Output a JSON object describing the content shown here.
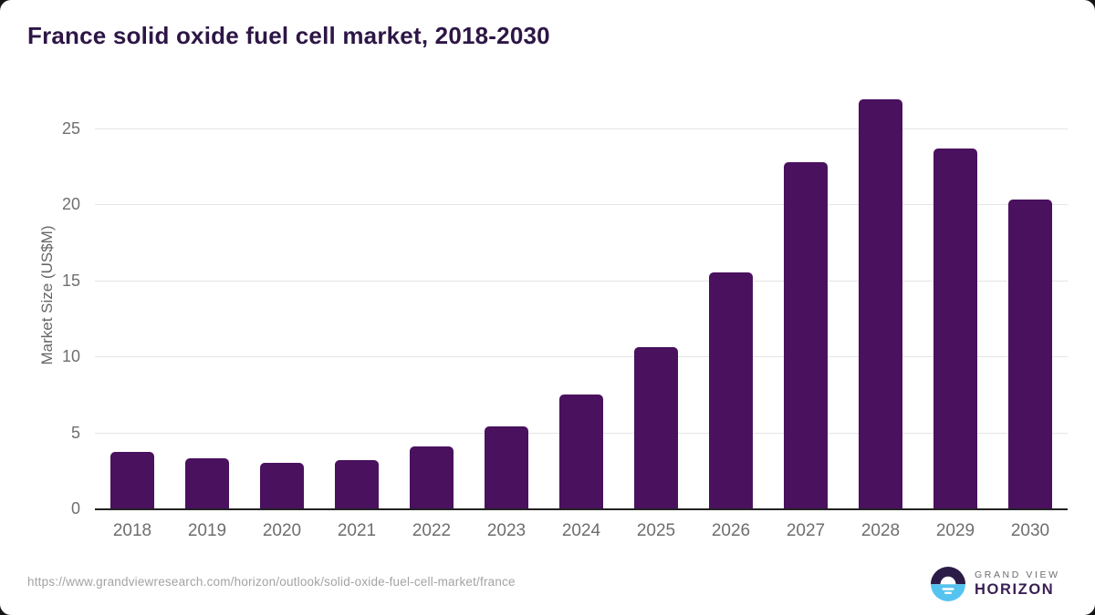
{
  "page_title": "France solid oxide fuel cell market, 2018-2030",
  "chart_data": {
    "type": "bar",
    "title": "France solid oxide fuel cell market, 2018-2030",
    "categories": [
      "2018",
      "2019",
      "2020",
      "2021",
      "2022",
      "2023",
      "2024",
      "2025",
      "2026",
      "2027",
      "2028",
      "2029",
      "2030"
    ],
    "values": [
      3.7,
      3.3,
      3.0,
      3.2,
      4.1,
      5.4,
      7.5,
      10.6,
      15.5,
      22.8,
      26.9,
      23.7,
      20.3
    ],
    "xlabel": "",
    "ylabel": "Market Size (US$M)",
    "ylim": [
      0,
      27.5
    ],
    "yticks": [
      0,
      5,
      10,
      15,
      20,
      25
    ],
    "grid": true,
    "legend": "none",
    "bar_color": "#4a115e"
  },
  "colors": {
    "title_text": "#2d1646",
    "bar": "#4a115e",
    "axis_line": "#222222",
    "gridline": "#e5e5e5",
    "tick_text": "#6f6f6f",
    "url_text": "#a3a3a3",
    "logo_dark": "#2b1b47",
    "logo_blue": "#55c3f0",
    "logo_grandview_text": "#6d6e71",
    "logo_horizon_text": "#3a1f53"
  },
  "footer": {
    "source_url": "https://www.grandviewresearch.com/horizon/outlook/solid-oxide-fuel-cell-market/france",
    "logo": {
      "line1": "GRAND VIEW",
      "line2": "HORIZON"
    }
  }
}
